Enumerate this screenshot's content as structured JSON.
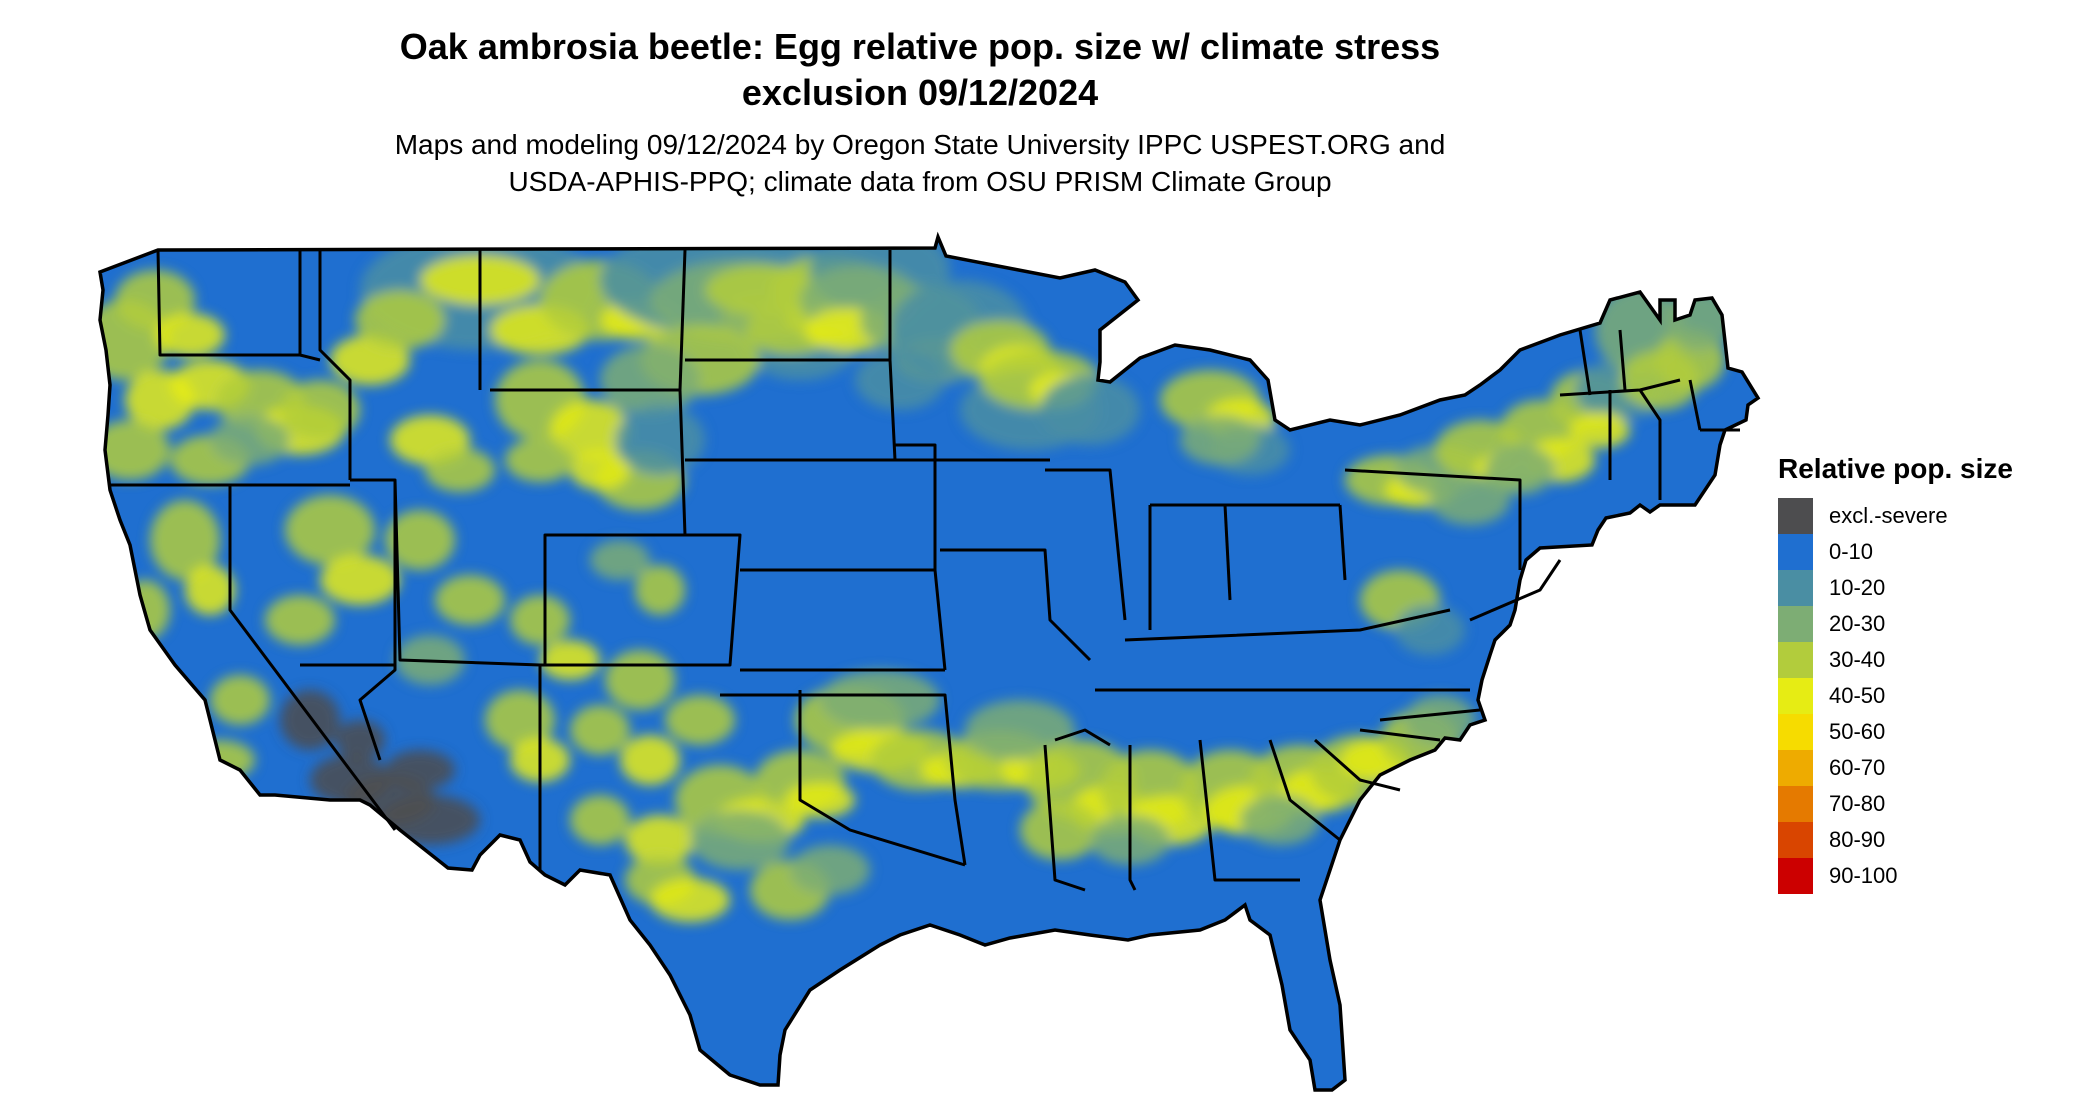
{
  "map": {
    "title_lines": [
      "Oak ambrosia beetle: Egg relative pop. size w/ climate stress",
      "exclusion 09/12/2024"
    ],
    "subtitle_lines": [
      "Maps and modeling 09/12/2024 by Oregon State University IPPC USPEST.ORG and",
      "USDA-APHIS-PPQ; climate data from OSU PRISM Climate Group"
    ],
    "region": "Contiguous United States",
    "base_category": "0-10",
    "legend": {
      "title": "Relative pop. size",
      "items": [
        {
          "label": "excl.-severe",
          "color": "#4d4d4f"
        },
        {
          "label": "0-10",
          "color": "#1f6fd0"
        },
        {
          "label": "10-20",
          "color": "#4a8ea3"
        },
        {
          "label": "20-30",
          "color": "#7dad74"
        },
        {
          "label": "30-40",
          "color": "#b2cc3c"
        },
        {
          "label": "40-50",
          "color": "#e6ec14"
        },
        {
          "label": "50-60",
          "color": "#f6dc00"
        },
        {
          "label": "60-70",
          "color": "#eeab00"
        },
        {
          "label": "70-80",
          "color": "#e57a00"
        },
        {
          "label": "80-90",
          "color": "#d94500"
        },
        {
          "label": "90-100",
          "color": "#cc0000"
        }
      ]
    }
  }
}
